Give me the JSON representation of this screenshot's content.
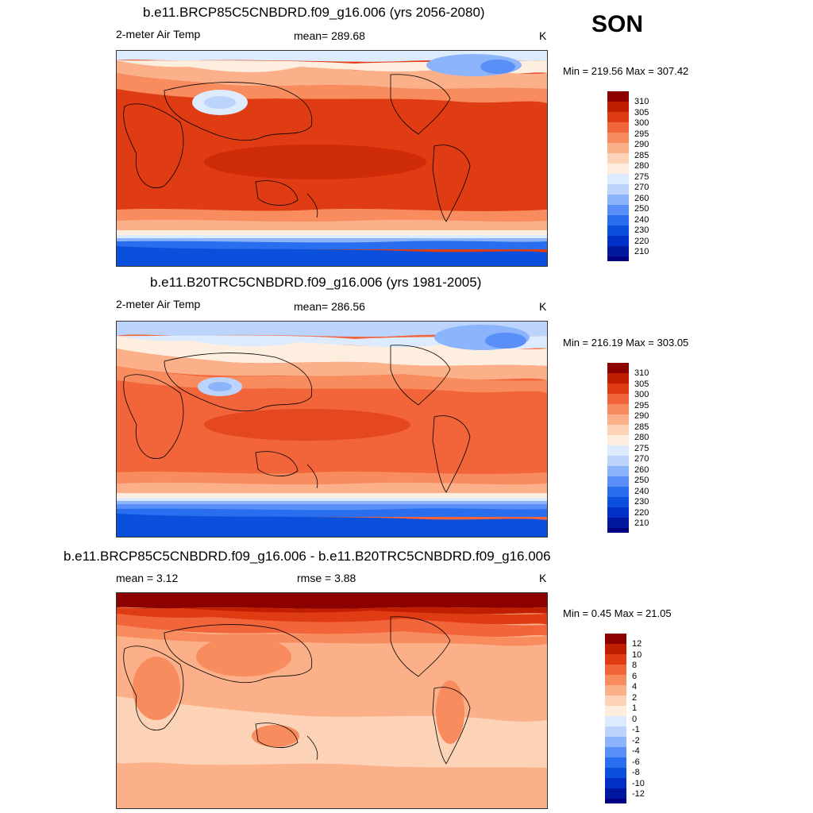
{
  "season": "SON",
  "colors": {
    "temp_levels": [
      "#000080",
      "#0018a0",
      "#0030c8",
      "#0a50dc",
      "#2a6ef0",
      "#5a8ef8",
      "#8cb4fa",
      "#bcd4fc",
      "#dcecfe",
      "#fdeee0",
      "#fdd3b8",
      "#fbb08a",
      "#f88c5e",
      "#f2643a",
      "#e03c14",
      "#c01e00",
      "#8c0000"
    ],
    "diff_levels": [
      "#000080",
      "#0018a0",
      "#0030c8",
      "#0a50dc",
      "#2a6ef0",
      "#5a8ef8",
      "#8cb4fa",
      "#bcd4fc",
      "#dcecfe",
      "#fdeee0",
      "#fdd3b8",
      "#fbb08a",
      "#f88c5e",
      "#f2643a",
      "#e03c14",
      "#c01e00",
      "#8c0000"
    ]
  },
  "panels": [
    {
      "title": "b.e11.BRCP85C5CNBDRD.f09_g16.006 (yrs 2056-2080)",
      "left_label": "2-meter Air Temp",
      "center_label": "mean= 289.68",
      "units": "K",
      "minmax": "Min = 219.56 Max = 307.42",
      "colorbar_labels": [
        "310",
        "305",
        "300",
        "295",
        "290",
        "285",
        "280",
        "275",
        "270",
        "260",
        "250",
        "240",
        "230",
        "220",
        "210"
      ]
    },
    {
      "title": "b.e11.B20TRC5CNBDRD.f09_g16.006 (yrs 1981-2005)",
      "left_label": "2-meter Air Temp",
      "center_label": "mean= 286.56",
      "units": "K",
      "minmax": "Min = 216.19 Max = 303.05",
      "colorbar_labels": [
        "310",
        "305",
        "300",
        "295",
        "290",
        "285",
        "280",
        "275",
        "270",
        "260",
        "250",
        "240",
        "230",
        "220",
        "210"
      ]
    },
    {
      "title": "b.e11.BRCP85C5CNBDRD.f09_g16.006 - b.e11.B20TRC5CNBDRD.f09_g16.006",
      "left_label": "mean =   3.12",
      "center_label": "rmse =   3.88",
      "units": "K",
      "minmax": "Min =   0.45 Max =  21.05",
      "colorbar_labels": [
        "12",
        "10",
        "8",
        "6",
        "4",
        "2",
        "1",
        "0",
        "-1",
        "-2",
        "-4",
        "-6",
        "-8",
        "-10",
        "-12"
      ]
    }
  ]
}
